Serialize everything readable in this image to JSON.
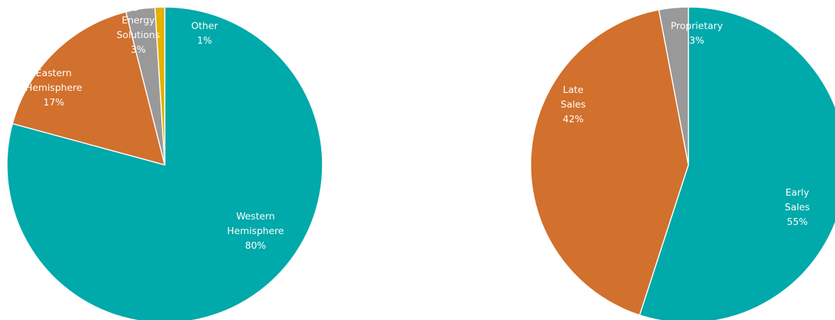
{
  "chart_data": [
    {
      "type": "pie",
      "title": "",
      "start_angle_deg": 0,
      "direction": "clockwise",
      "slices": [
        {
          "label": "Western Hemisphere",
          "label_lines": [
            "Western",
            "Hemisphere"
          ],
          "value": 80,
          "value_label": "80%",
          "color": "#00A9AA"
        },
        {
          "label": "Eastern Hemisphere",
          "label_lines": [
            "Eastern",
            "Hemisphere"
          ],
          "value": 17,
          "value_label": "17%",
          "color": "#D2702D"
        },
        {
          "label": "Digital Energy Solutions",
          "label_lines": [
            "Digital",
            "Energy",
            "Solutions"
          ],
          "value": 3,
          "value_label": "3%",
          "color": "#999999"
        },
        {
          "label": "Other",
          "label_lines": [
            "Other"
          ],
          "value": 1,
          "value_label": "1%",
          "color": "#E5B000"
        }
      ],
      "legend": "none"
    },
    {
      "type": "pie",
      "title": "",
      "start_angle_deg": 0,
      "direction": "clockwise",
      "slices": [
        {
          "label": "Early Sales",
          "label_lines": [
            "Early",
            "Sales"
          ],
          "value": 55,
          "value_label": "55%",
          "color": "#00A9AA"
        },
        {
          "label": "Late Sales",
          "label_lines": [
            "Late",
            "Sales"
          ],
          "value": 42,
          "value_label": "42%",
          "color": "#D2702D"
        },
        {
          "label": "Proprietary",
          "label_lines": [
            "Proprietary"
          ],
          "value": 3,
          "value_label": "3%",
          "color": "#999999"
        }
      ],
      "legend": "none"
    }
  ]
}
